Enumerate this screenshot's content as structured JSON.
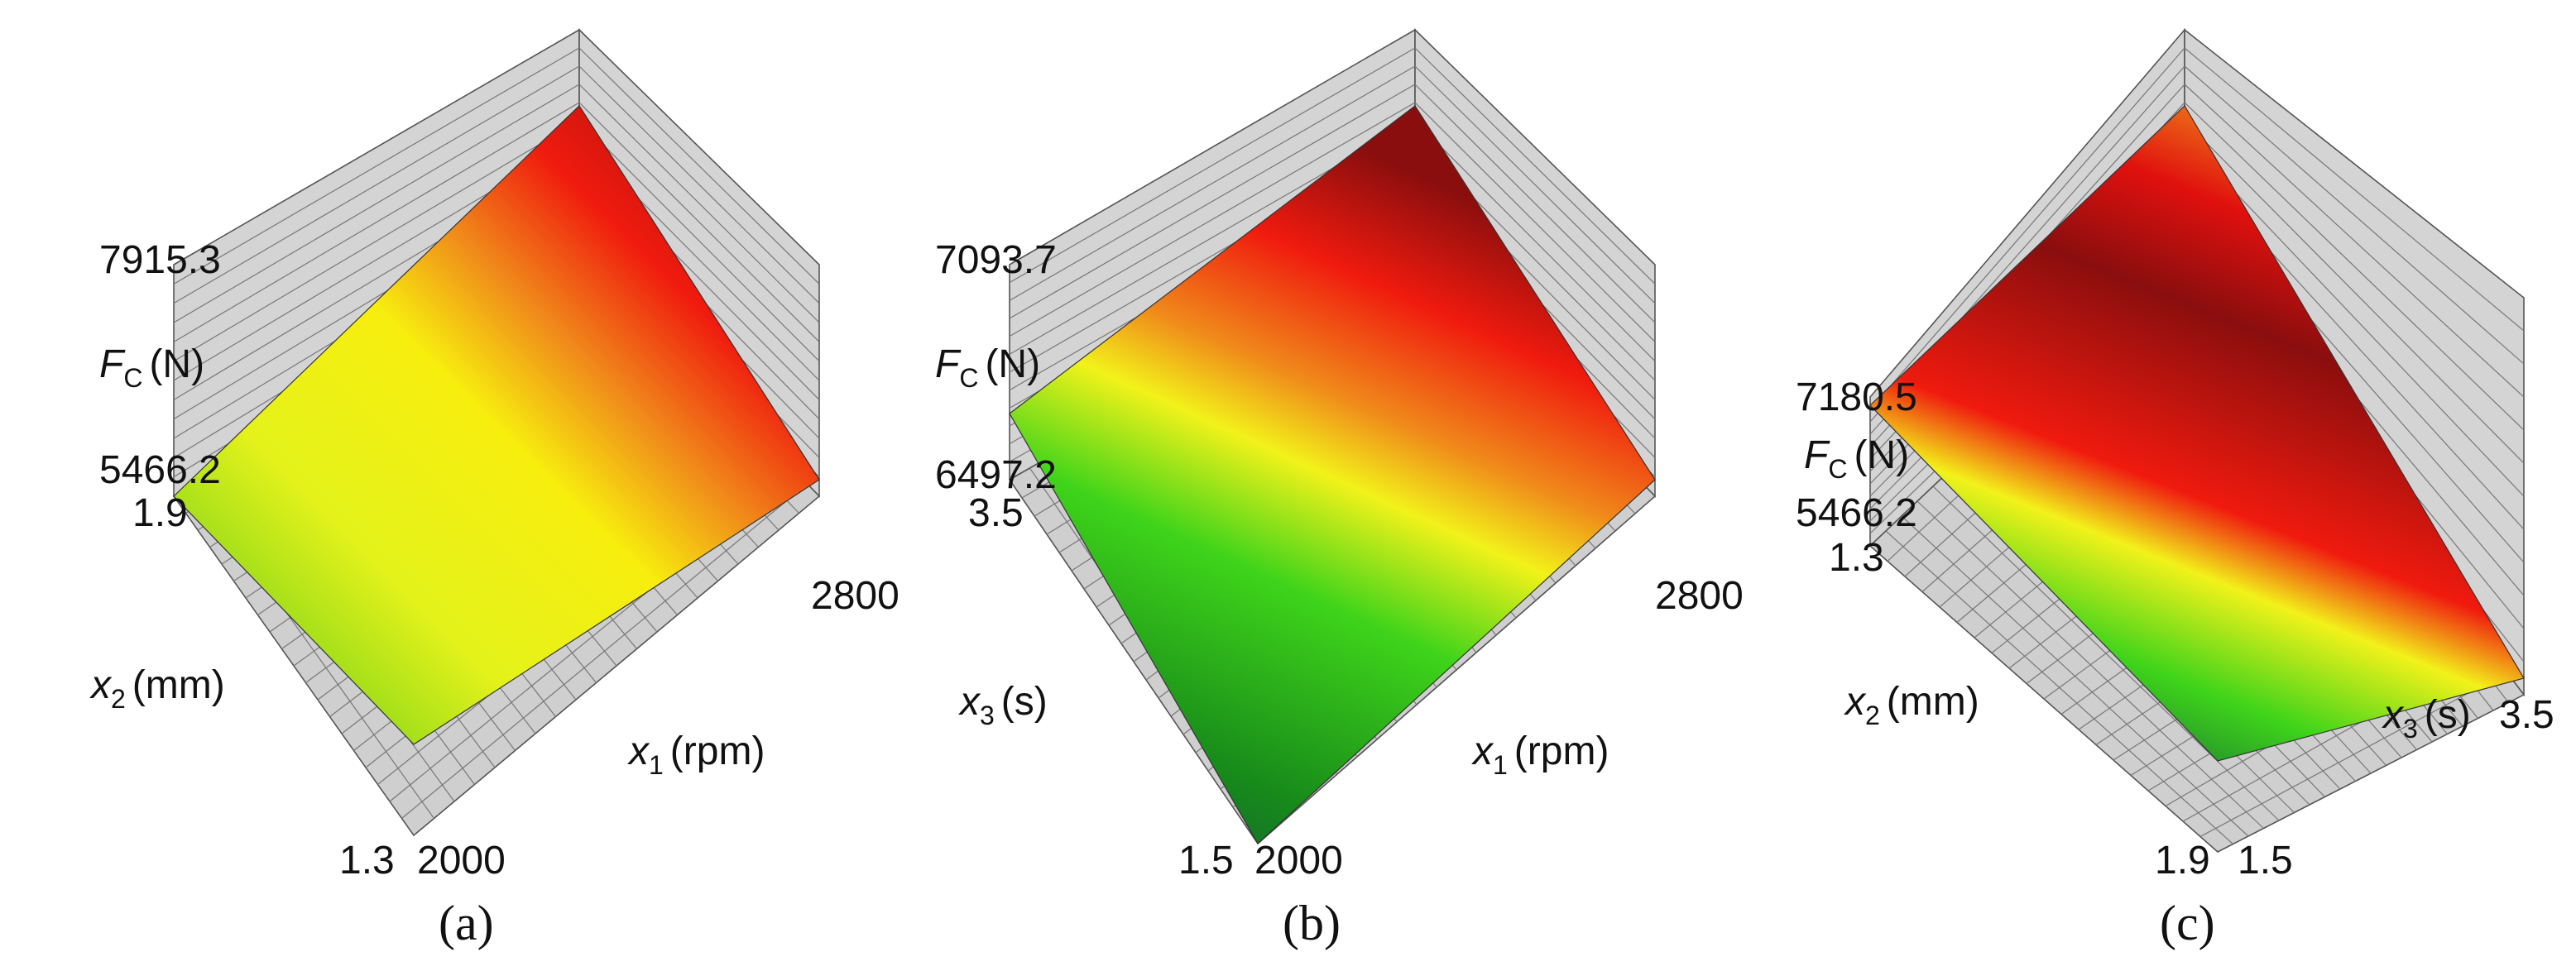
{
  "panels": [
    {
      "caption": "(a)",
      "z": {
        "max": "7915.3",
        "min": "5466.2",
        "label": {
          "var": "F",
          "sub": "C",
          "unit": "(N)"
        }
      },
      "left_axis": {
        "start": "1.9",
        "end": "1.3",
        "label": {
          "var": "x",
          "sub": "2",
          "unit": "(mm)"
        }
      },
      "right_axis": {
        "start": "2000",
        "end": "2800",
        "label": {
          "var": "x",
          "sub": "1",
          "unit": "(rpm)"
        }
      }
    },
    {
      "caption": "(b)",
      "z": {
        "max": "7093.7",
        "min": "6497.2",
        "label": {
          "var": "F",
          "sub": "C",
          "unit": "(N)"
        }
      },
      "left_axis": {
        "start": "3.5",
        "end": "1.5",
        "label": {
          "var": "x",
          "sub": "3",
          "unit": "(s)"
        }
      },
      "right_axis": {
        "start": "2000",
        "end": "2800",
        "label": {
          "var": "x",
          "sub": "1",
          "unit": "(rpm)"
        }
      }
    },
    {
      "caption": "(c)",
      "z": {
        "max": "7180.5",
        "min": "5466.2",
        "label": {
          "var": "F",
          "sub": "C",
          "unit": "(N)"
        }
      },
      "left_axis": {
        "start": "1.3",
        "end": "1.9",
        "label": {
          "var": "x",
          "sub": "2",
          "unit": "(mm)"
        }
      },
      "right_axis": {
        "start": "1.5",
        "end": "3.5",
        "label": {
          "var": "x",
          "sub": "3",
          "unit": "(s)"
        }
      }
    }
  ]
}
